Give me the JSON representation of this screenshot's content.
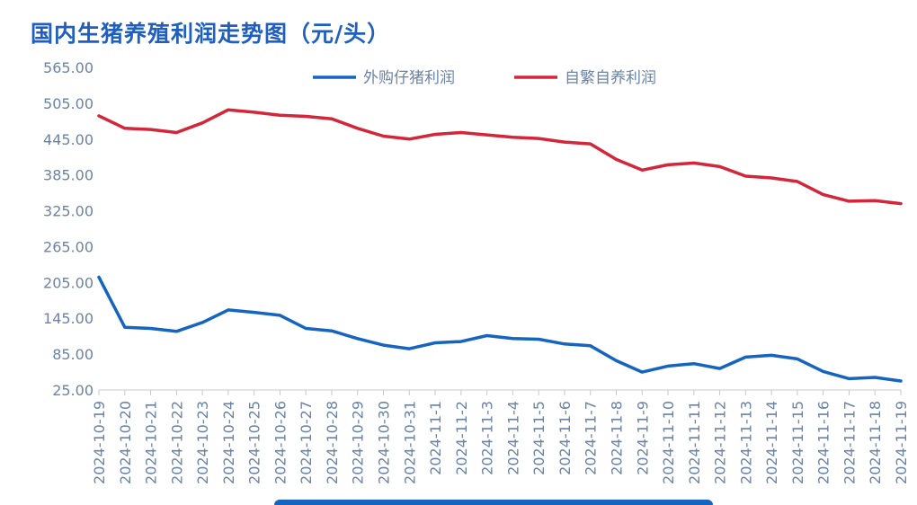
{
  "chart_data": {
    "type": "line",
    "title": "国内生猪养殖利润走势图（元/头）",
    "xlabel": "",
    "ylabel": "",
    "ylim": [
      25,
      565
    ],
    "yticks": [
      "565.00",
      "505.00",
      "445.00",
      "385.00",
      "325.00",
      "265.00",
      "205.00",
      "145.00",
      "85.00",
      "25.00"
    ],
    "categories": [
      "2024-10-19",
      "2024-10-20",
      "2024-10-21",
      "2024-10-22",
      "2024-10-23",
      "2024-10-24",
      "2024-10-25",
      "2024-10-26",
      "2024-10-27",
      "2024-10-28",
      "2024-10-29",
      "2024-10-30",
      "2024-10-31",
      "2024-11-1",
      "2024-11-2",
      "2024-11-3",
      "2024-11-4",
      "2024-11-5",
      "2024-11-6",
      "2024-11-7",
      "2024-11-8",
      "2024-11-9",
      "2024-11-10",
      "2024-11-11",
      "2024-11-12",
      "2024-11-13",
      "2024-11-14",
      "2024-11-15",
      "2024-11-16",
      "2024-11-17",
      "2024-11-18",
      "2024-11-19"
    ],
    "series": [
      {
        "name": "外购仔猪利润",
        "color": "#1565c0",
        "values": [
          214,
          130,
          128,
          123,
          138,
          159,
          155,
          150,
          128,
          124,
          111,
          100,
          94,
          104,
          106,
          116,
          111,
          110,
          102,
          99,
          74,
          55,
          65,
          69,
          61,
          80,
          83,
          77,
          56,
          44,
          46,
          40
        ]
      },
      {
        "name": "自繁自养利润",
        "color": "#d3263a",
        "values": [
          484,
          463,
          461,
          456,
          472,
          494,
          490,
          485,
          483,
          479,
          463,
          450,
          445,
          453,
          456,
          452,
          448,
          446,
          440,
          437,
          411,
          393,
          402,
          405,
          399,
          383,
          380,
          374,
          352,
          341,
          342,
          337
        ]
      }
    ],
    "legend": "top-center",
    "grid": false
  }
}
